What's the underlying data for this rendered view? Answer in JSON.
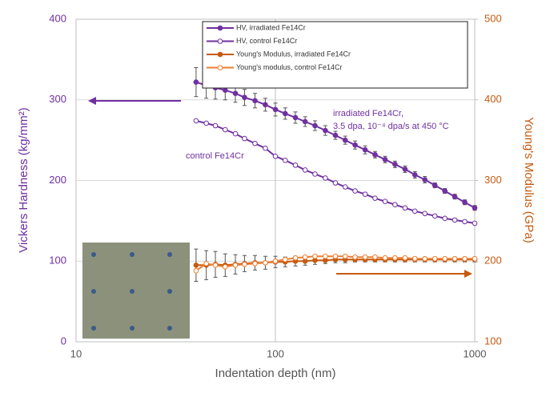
{
  "chart_data": {
    "type": "line",
    "x_log": true,
    "grid": true,
    "xlabel": "Indentation depth (nm)",
    "ylabel": "Vickers Hardness (kg/mm²)",
    "y2label": "Young's Modulus (GPa)",
    "xlim": [
      10,
      1000
    ],
    "xticks": [
      10,
      100,
      1000
    ],
    "ylim": [
      0,
      400
    ],
    "yticks": [
      0,
      100,
      200,
      300,
      400
    ],
    "y2lim": [
      100,
      500
    ],
    "y2ticks": [
      100,
      200,
      300,
      400,
      500
    ],
    "annotations": [
      "irradiated Fe14Cr,",
      "3.5 dpa, 10⁻⁴ dpa/s at 450 °C",
      "control Fe14Cr"
    ],
    "x": [
      40,
      45,
      50,
      56,
      63,
      70,
      79,
      89,
      100,
      112,
      126,
      141,
      158,
      178,
      200,
      224,
      251,
      282,
      316,
      355,
      398,
      447,
      501,
      562,
      631,
      708,
      794,
      891,
      1000
    ],
    "series": [
      {
        "name": "HV, irradiated Fe14Cr",
        "color": "#7030a0",
        "marker": "filled",
        "axis": "y",
        "values": [
          322,
          318,
          315,
          312,
          308,
          303,
          299,
          294,
          288,
          283,
          278,
          273,
          268,
          262,
          256,
          250,
          244,
          238,
          232,
          226,
          220,
          214,
          207,
          201,
          194,
          187,
          180,
          173,
          166
        ],
        "errors": [
          18,
          16,
          14,
          12,
          11,
          10,
          9,
          8,
          8,
          7,
          7,
          6,
          6,
          6,
          5,
          5,
          5,
          5,
          4,
          4,
          4,
          4,
          4,
          4,
          3,
          3,
          3,
          3,
          3
        ]
      },
      {
        "name": "HV, control Fe14Cr",
        "color": "#7030a0",
        "marker": "open",
        "axis": "y",
        "values": [
          274,
          271,
          268,
          263,
          258,
          252,
          246,
          240,
          230,
          225,
          219,
          213,
          208,
          203,
          197,
          192,
          187,
          183,
          178,
          174,
          170,
          166,
          162,
          159,
          156,
          153,
          151,
          149,
          147
        ]
      },
      {
        "name": "Young's Modulus, irradiated Fe14Cr",
        "color": "#c55a11",
        "marker": "filled",
        "axis": "y2",
        "values": [
          195,
          195,
          196,
          195,
          196,
          197,
          198,
          198,
          199,
          199,
          200,
          200,
          201,
          201,
          202,
          202,
          202,
          202,
          202,
          202,
          202,
          202,
          202,
          202,
          202,
          202,
          202,
          202,
          202
        ],
        "errors": [
          20,
          18,
          16,
          14,
          12,
          10,
          9,
          8,
          7,
          6,
          6,
          5,
          5,
          4,
          4,
          4,
          3,
          3,
          3,
          3,
          3,
          3,
          3,
          3,
          3,
          3,
          3,
          3,
          3
        ]
      },
      {
        "name": "Young's modulus, control Fe14Cr",
        "color": "#ed7d31",
        "marker": "open",
        "axis": "y2",
        "values": [
          188,
          197,
          195,
          193,
          195,
          196,
          197,
          198,
          200,
          202,
          204,
          205,
          206,
          206,
          206,
          206,
          205,
          205,
          205,
          204,
          204,
          204,
          203,
          203,
          203,
          203,
          203,
          203,
          203
        ]
      }
    ]
  }
}
